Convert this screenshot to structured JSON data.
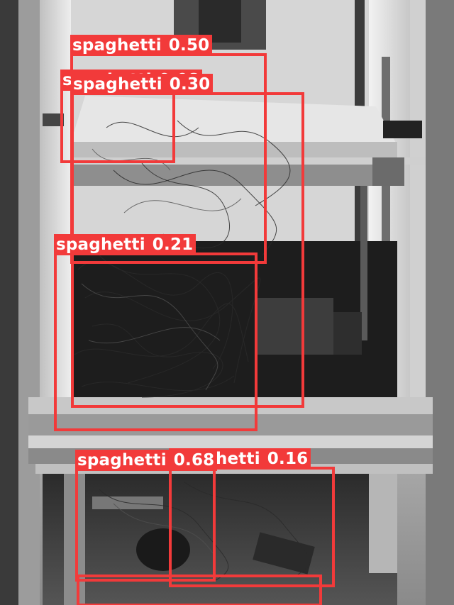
{
  "image": {
    "description_free": true
  },
  "colors": {
    "box": "#f23a3a",
    "label_text": "#ffffff"
  },
  "detections": [
    {
      "label": "spaghetti",
      "score": "0.50"
    },
    {
      "label": "spaghetti",
      "score": "0.08"
    },
    {
      "label": "spaghetti",
      "score": "0.30"
    },
    {
      "label": "spaghetti",
      "score": "0.21"
    },
    {
      "label": "spaghetti",
      "score": "0.68"
    },
    {
      "label": "spaghetti",
      "score": "0.16"
    },
    {
      "label": "spaghetti",
      "score": ""
    }
  ]
}
